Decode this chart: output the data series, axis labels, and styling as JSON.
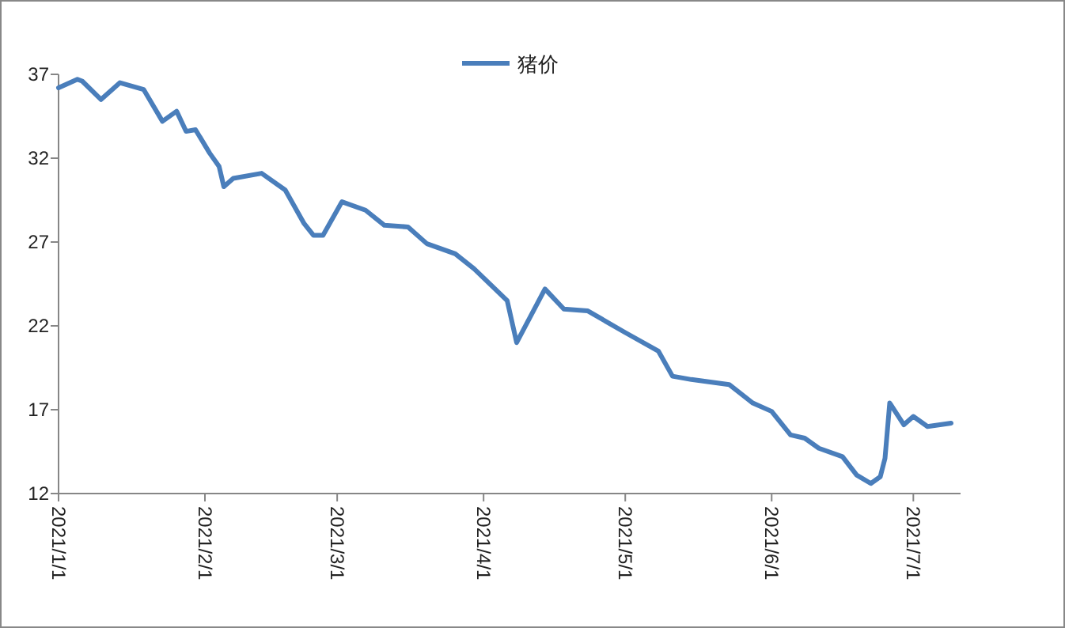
{
  "chart_data": {
    "type": "line",
    "legend": "top",
    "grid": false,
    "marker": "none",
    "line_style": "solid",
    "x": [
      "2021-01-01",
      "2021-01-05",
      "2021-01-06",
      "2021-01-10",
      "2021-01-14",
      "2021-01-19",
      "2021-01-23",
      "2021-01-26",
      "2021-01-28",
      "2021-01-30",
      "2021-02-02",
      "2021-02-04",
      "2021-02-05",
      "2021-02-07",
      "2021-02-13",
      "2021-02-18",
      "2021-02-22",
      "2021-02-24",
      "2021-02-26",
      "2021-03-02",
      "2021-03-07",
      "2021-03-11",
      "2021-03-16",
      "2021-03-20",
      "2021-03-26",
      "2021-03-30",
      "2021-04-06",
      "2021-04-08",
      "2021-04-14",
      "2021-04-18",
      "2021-04-23",
      "2021-05-01",
      "2021-05-08",
      "2021-05-11",
      "2021-05-15",
      "2021-05-23",
      "2021-05-28",
      "2021-06-01",
      "2021-06-05",
      "2021-06-08",
      "2021-06-11",
      "2021-06-16",
      "2021-06-19",
      "2021-06-22",
      "2021-06-24",
      "2021-06-25",
      "2021-06-26",
      "2021-06-29",
      "2021-07-01",
      "2021-07-04",
      "2021-07-09"
    ],
    "series": [
      {
        "name": "猪价",
        "color": "#4a7ebb",
        "values": [
          36.2,
          36.7,
          36.6,
          35.5,
          36.5,
          36.1,
          34.2,
          34.8,
          33.6,
          33.7,
          32.3,
          31.5,
          30.3,
          30.8,
          31.1,
          30.1,
          28.1,
          27.4,
          27.4,
          29.4,
          28.9,
          28,
          27.9,
          26.9,
          26.3,
          25.4,
          23.5,
          21,
          24.2,
          23,
          22.9,
          21.6,
          20.5,
          19,
          18.8,
          18.5,
          17.4,
          16.9,
          15.5,
          15.3,
          14.7,
          14.2,
          13.1,
          12.6,
          13,
          14.1,
          17.4,
          16.1,
          16.6,
          16,
          16.2
        ]
      }
    ],
    "xlim": [
      "2021-01-01",
      "2021-07-11"
    ],
    "xticks": [
      {
        "value": "2021-01-01",
        "label": "2021/1/1"
      },
      {
        "value": "2021-02-01",
        "label": "2021/2/1"
      },
      {
        "value": "2021-03-01",
        "label": "2021/3/1"
      },
      {
        "value": "2021-04-01",
        "label": "2021/4/1"
      },
      {
        "value": "2021-05-01",
        "label": "2021/5/1"
      },
      {
        "value": "2021-06-01",
        "label": "2021/6/1"
      },
      {
        "value": "2021-07-01",
        "label": "2021/7/1"
      }
    ],
    "ylim": [
      12,
      37
    ],
    "yticks": [
      12,
      17,
      22,
      27,
      32,
      37
    ]
  }
}
